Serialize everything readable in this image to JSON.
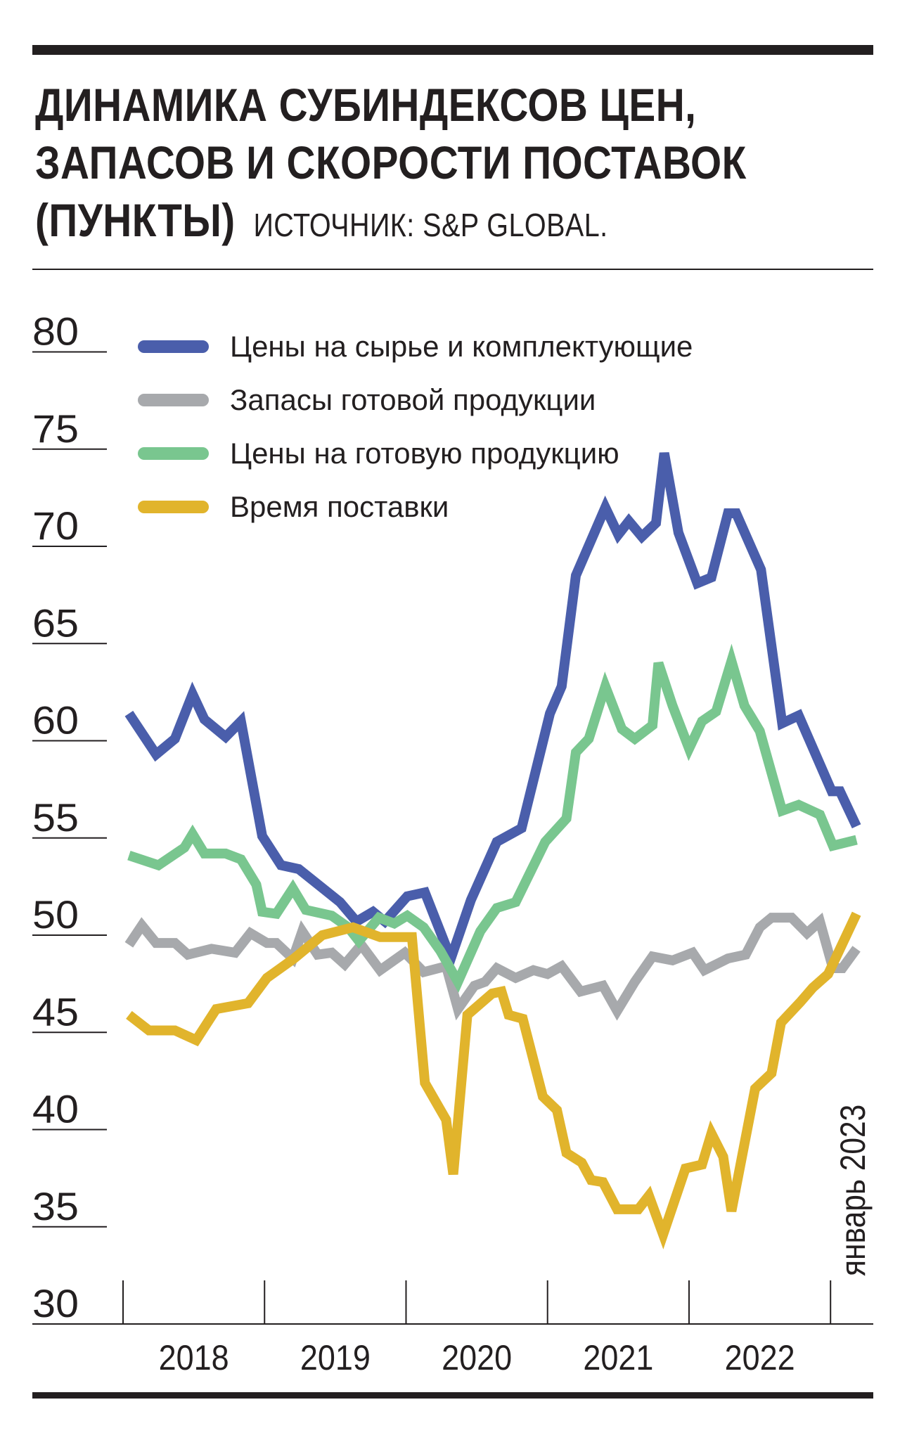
{
  "header": {
    "title_line1": "ДИНАМИКА СУБИНДЕКСОВ ЦЕН,",
    "title_line2": "ЗАПАСОВ И СКОРОСТИ ПОСТАВОК",
    "title_line3": "(ПУНКТЫ)",
    "source": "ИСТОЧНИК: S&P GLOBAL."
  },
  "chart_data": {
    "type": "line",
    "title": "Динамика субиндексов цен, запасов и скорости поставок (пункты)",
    "ylim": [
      30,
      80
    ],
    "y_ticks": [
      "80",
      "75",
      "70",
      "65",
      "60",
      "55",
      "50",
      "45",
      "40",
      "35",
      "30"
    ],
    "x_ticks": [
      "2018",
      "2019",
      "2020",
      "2021",
      "2022"
    ],
    "end_annotation": "январь 2023",
    "legend_position": "top-left",
    "series": [
      {
        "name": "Цены на сырье и комплектующие",
        "color": "#4a5eab",
        "points": [
          [
            0.5,
            61.4
          ],
          [
            2.8,
            59.3
          ],
          [
            4.4,
            60.1
          ],
          [
            5.9,
            62.4
          ],
          [
            6.9,
            61.1
          ],
          [
            8.7,
            60.2
          ],
          [
            10.0,
            61.0
          ],
          [
            11.8,
            55.1
          ],
          [
            13.4,
            53.6
          ],
          [
            14.9,
            53.4
          ],
          [
            18.4,
            51.7
          ],
          [
            19.8,
            50.7
          ],
          [
            21.2,
            51.2
          ],
          [
            22.2,
            50.7
          ],
          [
            24.1,
            52.0
          ],
          [
            25.6,
            52.2
          ],
          [
            27.8,
            48.8
          ],
          [
            29.5,
            51.8
          ],
          [
            31.7,
            54.8
          ],
          [
            33.8,
            55.5
          ],
          [
            36.2,
            61.4
          ],
          [
            37.2,
            62.8
          ],
          [
            38.4,
            68.5
          ],
          [
            40.9,
            72.0
          ],
          [
            42.0,
            70.6
          ],
          [
            42.9,
            71.3
          ],
          [
            44.0,
            70.5
          ],
          [
            45.2,
            71.2
          ],
          [
            45.9,
            74.8
          ],
          [
            47.1,
            70.7
          ],
          [
            48.7,
            68.1
          ],
          [
            49.9,
            68.4
          ],
          [
            51.3,
            71.7
          ],
          [
            52.0,
            71.7
          ],
          [
            54.1,
            68.8
          ],
          [
            55.9,
            60.9
          ],
          [
            57.3,
            61.3
          ],
          [
            60.1,
            57.4
          ],
          [
            60.8,
            57.4
          ],
          [
            62.2,
            55.6
          ]
        ]
      },
      {
        "name": "Запасы готовой продукции",
        "color": "#a7a9ac",
        "points": [
          [
            0.5,
            49.5
          ],
          [
            1.6,
            50.5
          ],
          [
            2.8,
            49.6
          ],
          [
            4.4,
            49.6
          ],
          [
            5.5,
            49.0
          ],
          [
            7.5,
            49.3
          ],
          [
            9.5,
            49.1
          ],
          [
            10.8,
            50.1
          ],
          [
            12.2,
            49.6
          ],
          [
            13.0,
            49.6
          ],
          [
            14.4,
            48.8
          ],
          [
            15.2,
            50.2
          ],
          [
            16.5,
            49.0
          ],
          [
            17.7,
            49.1
          ],
          [
            18.8,
            48.5
          ],
          [
            20.2,
            49.5
          ],
          [
            21.8,
            48.2
          ],
          [
            23.9,
            49.1
          ],
          [
            25.5,
            48.1
          ],
          [
            27.4,
            48.4
          ],
          [
            28.4,
            46.2
          ],
          [
            29.8,
            47.4
          ],
          [
            30.7,
            47.6
          ],
          [
            31.7,
            48.3
          ],
          [
            33.3,
            47.8
          ],
          [
            34.8,
            48.2
          ],
          [
            36.0,
            48.0
          ],
          [
            37.2,
            48.4
          ],
          [
            38.8,
            47.1
          ],
          [
            40.7,
            47.4
          ],
          [
            41.9,
            46.1
          ],
          [
            43.4,
            47.6
          ],
          [
            44.9,
            48.9
          ],
          [
            46.6,
            48.7
          ],
          [
            48.3,
            49.1
          ],
          [
            49.3,
            48.2
          ],
          [
            51.3,
            48.8
          ],
          [
            52.8,
            49.0
          ],
          [
            54.0,
            50.4
          ],
          [
            55.0,
            50.9
          ],
          [
            56.7,
            50.9
          ],
          [
            58.0,
            50.1
          ],
          [
            59.1,
            50.7
          ],
          [
            60.2,
            48.3
          ],
          [
            61.0,
            48.3
          ],
          [
            62.2,
            49.3
          ]
        ]
      },
      {
        "name": "Цены на готовую продукцию",
        "color": "#79c68f",
        "points": [
          [
            0.5,
            54.1
          ],
          [
            3.0,
            53.6
          ],
          [
            5.2,
            54.5
          ],
          [
            5.9,
            55.2
          ],
          [
            6.9,
            54.2
          ],
          [
            8.7,
            54.2
          ],
          [
            10.0,
            53.9
          ],
          [
            11.3,
            52.6
          ],
          [
            11.8,
            51.2
          ],
          [
            13.0,
            51.1
          ],
          [
            14.4,
            52.4
          ],
          [
            15.5,
            51.3
          ],
          [
            17.7,
            51.0
          ],
          [
            19.1,
            50.4
          ],
          [
            20.0,
            49.7
          ],
          [
            21.7,
            50.9
          ],
          [
            23.0,
            50.6
          ],
          [
            24.1,
            51.0
          ],
          [
            25.5,
            50.4
          ],
          [
            26.9,
            49.2
          ],
          [
            28.4,
            47.6
          ],
          [
            30.3,
            50.2
          ],
          [
            31.7,
            51.4
          ],
          [
            33.3,
            51.7
          ],
          [
            35.8,
            54.8
          ],
          [
            37.6,
            56.0
          ],
          [
            38.4,
            59.4
          ],
          [
            39.5,
            60.1
          ],
          [
            40.9,
            62.8
          ],
          [
            42.3,
            60.6
          ],
          [
            43.4,
            60.1
          ],
          [
            44.9,
            60.8
          ],
          [
            45.4,
            64.0
          ],
          [
            46.6,
            61.8
          ],
          [
            48.0,
            59.6
          ],
          [
            49.1,
            61.0
          ],
          [
            50.3,
            61.5
          ],
          [
            51.6,
            64.1
          ],
          [
            52.7,
            61.8
          ],
          [
            54.0,
            60.5
          ],
          [
            55.9,
            56.4
          ],
          [
            57.3,
            56.7
          ],
          [
            59.1,
            56.2
          ],
          [
            60.2,
            54.6
          ],
          [
            62.2,
            54.9
          ]
        ]
      },
      {
        "name": "Время поставки",
        "color": "#e1b42c",
        "points": [
          [
            0.5,
            45.9
          ],
          [
            2.2,
            45.1
          ],
          [
            4.4,
            45.1
          ],
          [
            6.2,
            44.6
          ],
          [
            7.9,
            46.2
          ],
          [
            10.6,
            46.5
          ],
          [
            12.2,
            47.8
          ],
          [
            14.5,
            48.8
          ],
          [
            16.9,
            50.0
          ],
          [
            19.5,
            50.4
          ],
          [
            21.8,
            49.9
          ],
          [
            24.5,
            49.9
          ],
          [
            25.6,
            42.4
          ],
          [
            27.4,
            40.5
          ],
          [
            28.0,
            37.7
          ],
          [
            29.2,
            45.9
          ],
          [
            31.3,
            47.0
          ],
          [
            32.1,
            47.1
          ],
          [
            32.7,
            45.9
          ],
          [
            33.9,
            45.7
          ],
          [
            35.6,
            41.7
          ],
          [
            36.8,
            41.0
          ],
          [
            37.6,
            38.8
          ],
          [
            38.9,
            38.3
          ],
          [
            39.7,
            37.4
          ],
          [
            40.7,
            37.3
          ],
          [
            41.9,
            35.9
          ],
          [
            43.7,
            35.9
          ],
          [
            44.6,
            36.6
          ],
          [
            45.8,
            34.6
          ],
          [
            47.7,
            38.0
          ],
          [
            49.1,
            38.2
          ],
          [
            49.9,
            39.8
          ],
          [
            50.9,
            38.6
          ],
          [
            51.6,
            35.8
          ],
          [
            53.6,
            42.1
          ],
          [
            55.0,
            42.9
          ],
          [
            55.8,
            45.5
          ],
          [
            57.5,
            46.6
          ],
          [
            58.5,
            47.3
          ],
          [
            59.8,
            48.0
          ],
          [
            62.2,
            51.1
          ]
        ]
      }
    ]
  }
}
